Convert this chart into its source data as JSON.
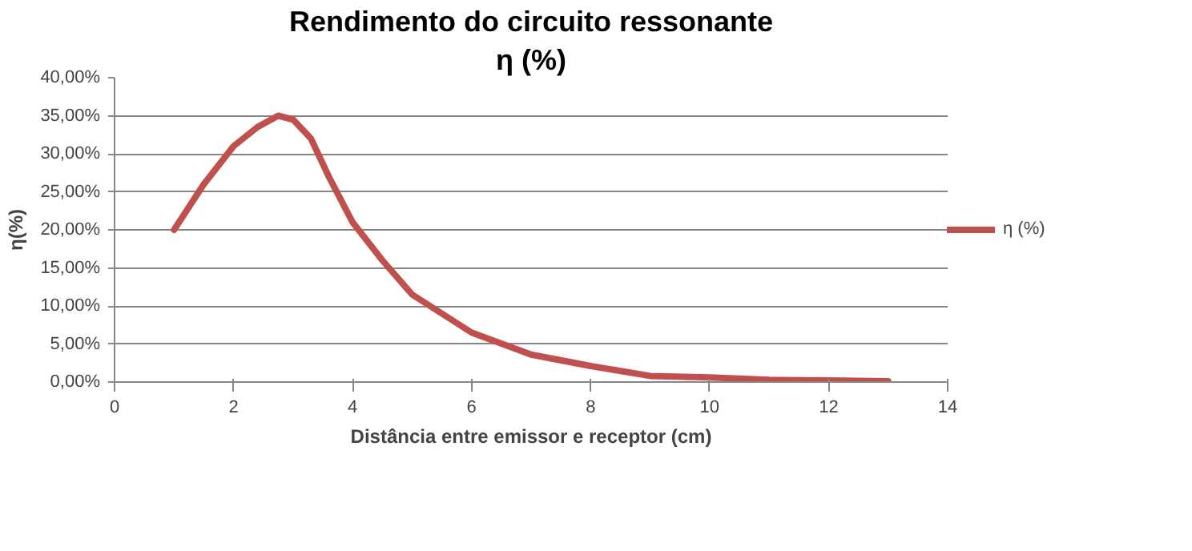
{
  "chart_data": {
    "type": "line",
    "title": "Rendimento do circuito ressonante",
    "subtitle": "η (%)",
    "xlabel": "Distância entre emissor e receptor (cm)",
    "ylabel": "η(%)",
    "x": [
      1,
      1.5,
      2,
      2.4,
      2.75,
      3,
      3.3,
      3.6,
      4,
      4.5,
      5,
      6,
      7,
      8,
      9,
      10,
      11,
      12,
      13
    ],
    "series": [
      {
        "name": "η (%)",
        "color": "#c0504d",
        "values": [
          20,
          26,
          31,
          33.5,
          35,
          34.5,
          32,
          27,
          21,
          16,
          11.5,
          6.5,
          3.6,
          2.1,
          0.8,
          0.6,
          0.3,
          0.2,
          0.1
        ]
      }
    ],
    "xlim": [
      0,
      14
    ],
    "xticks": [
      0,
      2,
      4,
      6,
      8,
      10,
      12,
      14
    ],
    "ylim": [
      0,
      40
    ],
    "yticks": [
      {
        "value": 0,
        "label": "0,00%"
      },
      {
        "value": 5,
        "label": "5,00%"
      },
      {
        "value": 10,
        "label": "10,00%"
      },
      {
        "value": 15,
        "label": "15,00%"
      },
      {
        "value": 20,
        "label": "20,00%"
      },
      {
        "value": 25,
        "label": "25,00%"
      },
      {
        "value": 30,
        "label": "30,00%"
      },
      {
        "value": 35,
        "label": "35,00%"
      },
      {
        "value": 40,
        "label": "40,00%"
      }
    ],
    "grid": "y",
    "legend": "right",
    "marker": "none",
    "line_style": "solid"
  }
}
